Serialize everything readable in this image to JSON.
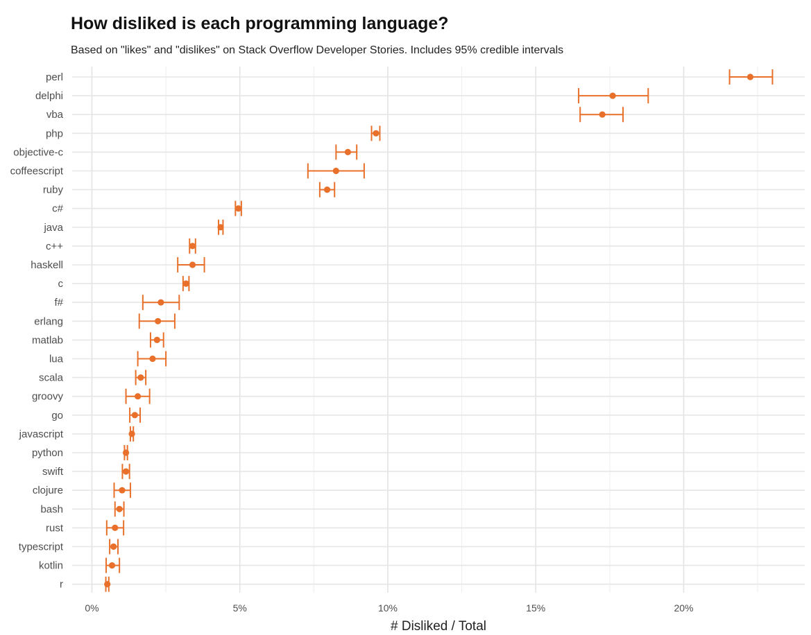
{
  "chart_data": {
    "type": "errorbar-dot",
    "title": "How disliked is each programming language?",
    "subtitle": "Based on \"likes\" and \"dislikes\" on Stack Overflow Developer Stories. Includes 95% credible intervals",
    "xlabel": "# Disliked / Total",
    "ylabel": "",
    "xlim": [
      -0.005,
      0.24
    ],
    "xticks": [
      0,
      0.05,
      0.1,
      0.15,
      0.2
    ],
    "xtick_labels": [
      "0%",
      "5%",
      "10%",
      "15%",
      "20%"
    ],
    "grid": true,
    "color": "#E8702A",
    "languages": [
      {
        "name": "perl",
        "value": 0.2225,
        "low": 0.2155,
        "high": 0.23
      },
      {
        "name": "delphi",
        "value": 0.176,
        "low": 0.1645,
        "high": 0.188
      },
      {
        "name": "vba",
        "value": 0.1725,
        "low": 0.165,
        "high": 0.1795
      },
      {
        "name": "php",
        "value": 0.096,
        "low": 0.0945,
        "high": 0.0973
      },
      {
        "name": "objective-c",
        "value": 0.0865,
        "low": 0.0825,
        "high": 0.0895
      },
      {
        "name": "coffeescript",
        "value": 0.0825,
        "low": 0.073,
        "high": 0.092
      },
      {
        "name": "ruby",
        "value": 0.0795,
        "low": 0.077,
        "high": 0.082
      },
      {
        "name": "c#",
        "value": 0.0495,
        "low": 0.0485,
        "high": 0.0505
      },
      {
        "name": "java",
        "value": 0.0435,
        "low": 0.0428,
        "high": 0.0443
      },
      {
        "name": "c++",
        "value": 0.034,
        "low": 0.033,
        "high": 0.035
      },
      {
        "name": "haskell",
        "value": 0.034,
        "low": 0.029,
        "high": 0.038
      },
      {
        "name": "c",
        "value": 0.0318,
        "low": 0.0308,
        "high": 0.0328
      },
      {
        "name": "f#",
        "value": 0.0233,
        "low": 0.0172,
        "high": 0.0295
      },
      {
        "name": "erlang",
        "value": 0.0223,
        "low": 0.016,
        "high": 0.028
      },
      {
        "name": "matlab",
        "value": 0.022,
        "low": 0.0198,
        "high": 0.0242
      },
      {
        "name": "lua",
        "value": 0.0205,
        "low": 0.0155,
        "high": 0.025
      },
      {
        "name": "scala",
        "value": 0.0165,
        "low": 0.0148,
        "high": 0.0182
      },
      {
        "name": "groovy",
        "value": 0.0155,
        "low": 0.0115,
        "high": 0.0195
      },
      {
        "name": "go",
        "value": 0.0145,
        "low": 0.0128,
        "high": 0.0163
      },
      {
        "name": "javascript",
        "value": 0.0135,
        "low": 0.013,
        "high": 0.014
      },
      {
        "name": "python",
        "value": 0.0115,
        "low": 0.011,
        "high": 0.012
      },
      {
        "name": "swift",
        "value": 0.0115,
        "low": 0.0103,
        "high": 0.0127
      },
      {
        "name": "clojure",
        "value": 0.0102,
        "low": 0.0075,
        "high": 0.013
      },
      {
        "name": "bash",
        "value": 0.0093,
        "low": 0.0078,
        "high": 0.0108
      },
      {
        "name": "rust",
        "value": 0.0078,
        "low": 0.005,
        "high": 0.0107
      },
      {
        "name": "typescript",
        "value": 0.0073,
        "low": 0.006,
        "high": 0.0088
      },
      {
        "name": "kotlin",
        "value": 0.0068,
        "low": 0.0048,
        "high": 0.0093
      },
      {
        "name": "r",
        "value": 0.0052,
        "low": 0.0047,
        "high": 0.0057
      }
    ]
  }
}
